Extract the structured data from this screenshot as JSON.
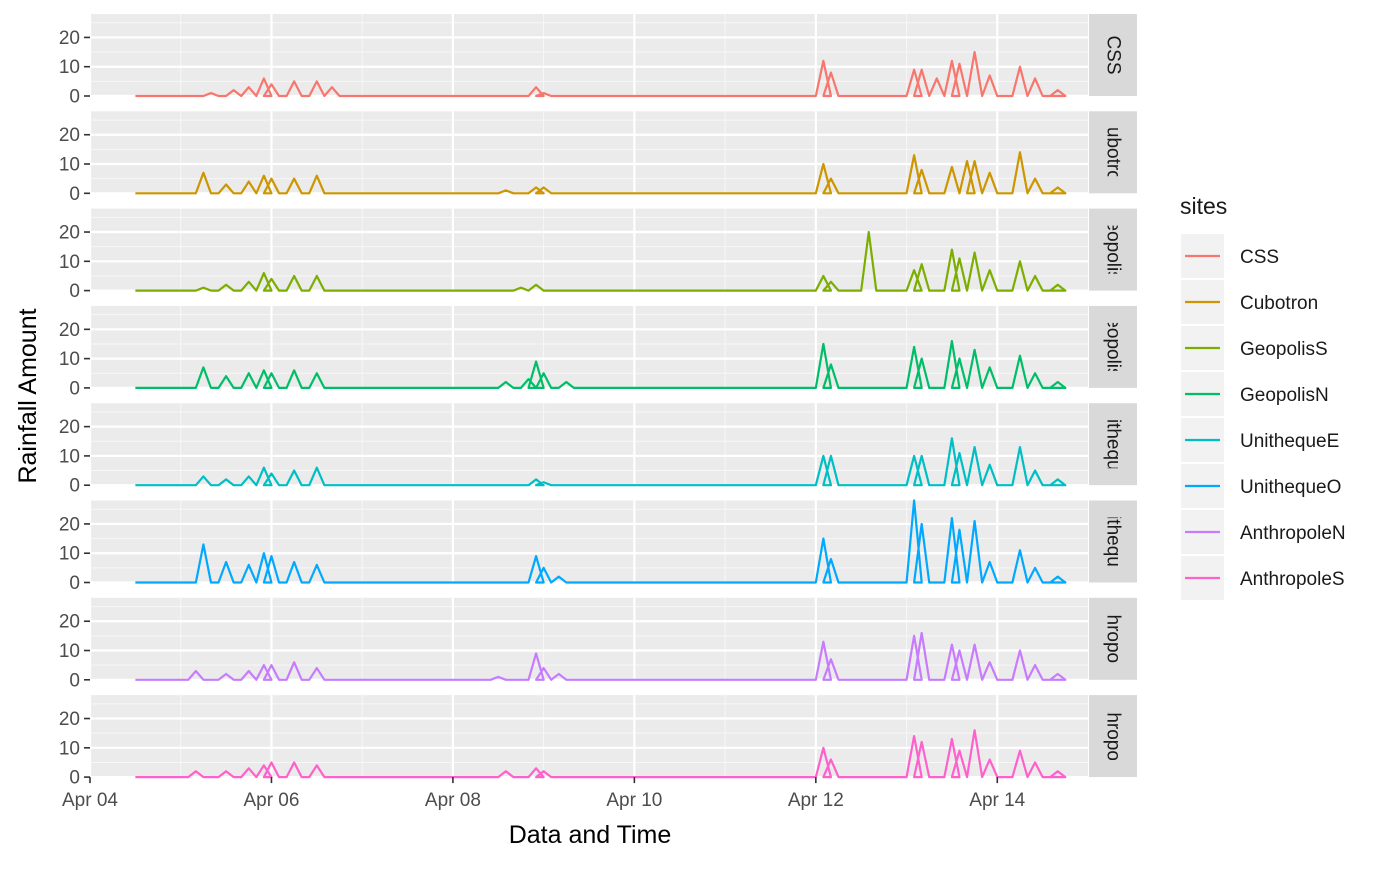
{
  "chart_data": {
    "type": "line",
    "xlabel": "Data and Time",
    "ylabel": "Rainfall Amount",
    "x_ticks": [
      "Apr 04",
      "Apr 06",
      "Apr 08",
      "Apr 10",
      "Apr 12",
      "Apr 14"
    ],
    "y_ticks": [
      "0",
      "10",
      "20"
    ],
    "ylim": [
      0,
      28
    ],
    "xlim": [
      "2022-04-04 00:00",
      "2022-04-15 00:00"
    ],
    "data_range": [
      "2022-04-04 12:00",
      "2022-04-14 12:00"
    ],
    "legend": {
      "title": "sites",
      "position": "right"
    },
    "grid": true,
    "series": [
      {
        "name": "CSS",
        "strip_label": "CSS",
        "color": "#F8766D",
        "spikes": [
          [
            "Apr 05 08:00",
            1
          ],
          [
            "Apr 05 14:00",
            2
          ],
          [
            "Apr 05 18:00",
            3
          ],
          [
            "Apr 05 22:00",
            6
          ],
          [
            "Apr 06 00:00",
            4
          ],
          [
            "Apr 06 06:00",
            5
          ],
          [
            "Apr 06 12:00",
            5
          ],
          [
            "Apr 06 16:00",
            3
          ],
          [
            "Apr 08 22:00",
            3
          ],
          [
            "Apr 09 00:00",
            1
          ],
          [
            "Apr 12 02:00",
            12
          ],
          [
            "Apr 12 04:00",
            8
          ],
          [
            "Apr 13 02:00",
            9
          ],
          [
            "Apr 13 04:00",
            9
          ],
          [
            "Apr 13 08:00",
            6
          ],
          [
            "Apr 13 12:00",
            12
          ],
          [
            "Apr 13 14:00",
            11
          ],
          [
            "Apr 13 18:00",
            15
          ],
          [
            "Apr 13 22:00",
            7
          ],
          [
            "Apr 14 06:00",
            10
          ],
          [
            "Apr 14 10:00",
            6
          ],
          [
            "Apr 14 16:00",
            2
          ]
        ]
      },
      {
        "name": "Cubotron",
        "strip_label": "Cubotron",
        "color": "#CD9600",
        "spikes": [
          [
            "Apr 05 06:00",
            7
          ],
          [
            "Apr 05 12:00",
            3
          ],
          [
            "Apr 05 18:00",
            4
          ],
          [
            "Apr 05 22:00",
            6
          ],
          [
            "Apr 06 00:00",
            5
          ],
          [
            "Apr 06 06:00",
            5
          ],
          [
            "Apr 06 12:00",
            6
          ],
          [
            "Apr 08 14:00",
            1
          ],
          [
            "Apr 08 22:00",
            2
          ],
          [
            "Apr 09 00:00",
            2
          ],
          [
            "Apr 12 02:00",
            10
          ],
          [
            "Apr 12 04:00",
            5
          ],
          [
            "Apr 13 02:00",
            13
          ],
          [
            "Apr 13 04:00",
            8
          ],
          [
            "Apr 13 12:00",
            9
          ],
          [
            "Apr 13 16:00",
            11
          ],
          [
            "Apr 13 18:00",
            11
          ],
          [
            "Apr 13 22:00",
            7
          ],
          [
            "Apr 14 06:00",
            14
          ],
          [
            "Apr 14 10:00",
            5
          ],
          [
            "Apr 14 16:00",
            2
          ]
        ]
      },
      {
        "name": "GeopolisS",
        "strip_label": "GeopolisS",
        "color": "#7CAE00",
        "spikes": [
          [
            "Apr 05 06:00",
            1
          ],
          [
            "Apr 05 12:00",
            2
          ],
          [
            "Apr 05 18:00",
            3
          ],
          [
            "Apr 05 22:00",
            6
          ],
          [
            "Apr 06 00:00",
            4
          ],
          [
            "Apr 06 06:00",
            5
          ],
          [
            "Apr 06 12:00",
            5
          ],
          [
            "Apr 08 18:00",
            1
          ],
          [
            "Apr 08 22:00",
            2
          ],
          [
            "Apr 12 02:00",
            5
          ],
          [
            "Apr 12 04:00",
            3
          ],
          [
            "Apr 12 14:00",
            20
          ],
          [
            "Apr 13 02:00",
            7
          ],
          [
            "Apr 13 04:00",
            9
          ],
          [
            "Apr 13 12:00",
            14
          ],
          [
            "Apr 13 14:00",
            11
          ],
          [
            "Apr 13 18:00",
            13
          ],
          [
            "Apr 13 22:00",
            7
          ],
          [
            "Apr 14 06:00",
            10
          ],
          [
            "Apr 14 10:00",
            5
          ],
          [
            "Apr 14 16:00",
            2
          ]
        ]
      },
      {
        "name": "GeopolisN",
        "strip_label": "GeopolisN",
        "color": "#00BE67",
        "spikes": [
          [
            "Apr 05 06:00",
            7
          ],
          [
            "Apr 05 12:00",
            4
          ],
          [
            "Apr 05 18:00",
            5
          ],
          [
            "Apr 05 22:00",
            6
          ],
          [
            "Apr 06 00:00",
            5
          ],
          [
            "Apr 06 06:00",
            6
          ],
          [
            "Apr 06 12:00",
            5
          ],
          [
            "Apr 08 14:00",
            2
          ],
          [
            "Apr 08 20:00",
            3
          ],
          [
            "Apr 08 22:00",
            9
          ],
          [
            "Apr 09 00:00",
            5
          ],
          [
            "Apr 09 06:00",
            2
          ],
          [
            "Apr 12 02:00",
            15
          ],
          [
            "Apr 12 04:00",
            8
          ],
          [
            "Apr 13 02:00",
            14
          ],
          [
            "Apr 13 04:00",
            10
          ],
          [
            "Apr 13 12:00",
            16
          ],
          [
            "Apr 13 14:00",
            10
          ],
          [
            "Apr 13 18:00",
            13
          ],
          [
            "Apr 13 22:00",
            7
          ],
          [
            "Apr 14 06:00",
            11
          ],
          [
            "Apr 14 10:00",
            5
          ],
          [
            "Apr 14 16:00",
            2
          ]
        ]
      },
      {
        "name": "UnithequeE",
        "strip_label": "UnithequeE",
        "color": "#00BFC4",
        "spikes": [
          [
            "Apr 05 06:00",
            3
          ],
          [
            "Apr 05 12:00",
            2
          ],
          [
            "Apr 05 18:00",
            3
          ],
          [
            "Apr 05 22:00",
            6
          ],
          [
            "Apr 06 00:00",
            4
          ],
          [
            "Apr 06 06:00",
            5
          ],
          [
            "Apr 06 12:00",
            6
          ],
          [
            "Apr 08 22:00",
            2
          ],
          [
            "Apr 09 00:00",
            1
          ],
          [
            "Apr 12 02:00",
            10
          ],
          [
            "Apr 12 04:00",
            10
          ],
          [
            "Apr 13 02:00",
            10
          ],
          [
            "Apr 13 04:00",
            10
          ],
          [
            "Apr 13 12:00",
            16
          ],
          [
            "Apr 13 14:00",
            11
          ],
          [
            "Apr 13 18:00",
            13
          ],
          [
            "Apr 13 22:00",
            7
          ],
          [
            "Apr 14 06:00",
            13
          ],
          [
            "Apr 14 10:00",
            5
          ],
          [
            "Apr 14 16:00",
            2
          ]
        ]
      },
      {
        "name": "UnithequeO",
        "strip_label": "UnithequeO",
        "color": "#00A9FF",
        "spikes": [
          [
            "Apr 05 06:00",
            13
          ],
          [
            "Apr 05 12:00",
            7
          ],
          [
            "Apr 05 18:00",
            6
          ],
          [
            "Apr 05 22:00",
            10
          ],
          [
            "Apr 06 00:00",
            9
          ],
          [
            "Apr 06 06:00",
            7
          ],
          [
            "Apr 06 12:00",
            6
          ],
          [
            "Apr 08 22:00",
            9
          ],
          [
            "Apr 09 00:00",
            5
          ],
          [
            "Apr 09 04:00",
            2
          ],
          [
            "Apr 12 02:00",
            15
          ],
          [
            "Apr 12 04:00",
            8
          ],
          [
            "Apr 13 02:00",
            28
          ],
          [
            "Apr 13 04:00",
            20
          ],
          [
            "Apr 13 12:00",
            22
          ],
          [
            "Apr 13 14:00",
            18
          ],
          [
            "Apr 13 18:00",
            21
          ],
          [
            "Apr 13 22:00",
            7
          ],
          [
            "Apr 14 06:00",
            11
          ],
          [
            "Apr 14 10:00",
            5
          ],
          [
            "Apr 14 16:00",
            2
          ]
        ]
      },
      {
        "name": "AnthropoleN",
        "strip_label": "AnthropoleN",
        "color": "#C77CFF",
        "spikes": [
          [
            "Apr 05 04:00",
            3
          ],
          [
            "Apr 05 12:00",
            2
          ],
          [
            "Apr 05 18:00",
            3
          ],
          [
            "Apr 05 22:00",
            5
          ],
          [
            "Apr 06 00:00",
            5
          ],
          [
            "Apr 06 06:00",
            6
          ],
          [
            "Apr 06 12:00",
            4
          ],
          [
            "Apr 08 12:00",
            1
          ],
          [
            "Apr 08 22:00",
            9
          ],
          [
            "Apr 09 00:00",
            4
          ],
          [
            "Apr 09 04:00",
            2
          ],
          [
            "Apr 12 02:00",
            13
          ],
          [
            "Apr 12 04:00",
            7
          ],
          [
            "Apr 13 02:00",
            15
          ],
          [
            "Apr 13 04:00",
            16
          ],
          [
            "Apr 13 12:00",
            12
          ],
          [
            "Apr 13 14:00",
            10
          ],
          [
            "Apr 13 18:00",
            12
          ],
          [
            "Apr 13 22:00",
            6
          ],
          [
            "Apr 14 06:00",
            10
          ],
          [
            "Apr 14 10:00",
            5
          ],
          [
            "Apr 14 16:00",
            2
          ]
        ]
      },
      {
        "name": "AnthropoleS",
        "strip_label": "AnthropoleS",
        "color": "#FF61CC",
        "spikes": [
          [
            "Apr 05 04:00",
            2
          ],
          [
            "Apr 05 12:00",
            2
          ],
          [
            "Apr 05 18:00",
            3
          ],
          [
            "Apr 05 22:00",
            4
          ],
          [
            "Apr 06 00:00",
            5
          ],
          [
            "Apr 06 06:00",
            5
          ],
          [
            "Apr 06 12:00",
            4
          ],
          [
            "Apr 08 14:00",
            2
          ],
          [
            "Apr 08 22:00",
            3
          ],
          [
            "Apr 09 00:00",
            2
          ],
          [
            "Apr 12 02:00",
            10
          ],
          [
            "Apr 12 04:00",
            6
          ],
          [
            "Apr 13 02:00",
            14
          ],
          [
            "Apr 13 04:00",
            12
          ],
          [
            "Apr 13 12:00",
            13
          ],
          [
            "Apr 13 14:00",
            9
          ],
          [
            "Apr 13 18:00",
            16
          ],
          [
            "Apr 13 22:00",
            6
          ],
          [
            "Apr 14 06:00",
            9
          ],
          [
            "Apr 14 10:00",
            5
          ],
          [
            "Apr 14 16:00",
            2
          ]
        ]
      }
    ]
  }
}
